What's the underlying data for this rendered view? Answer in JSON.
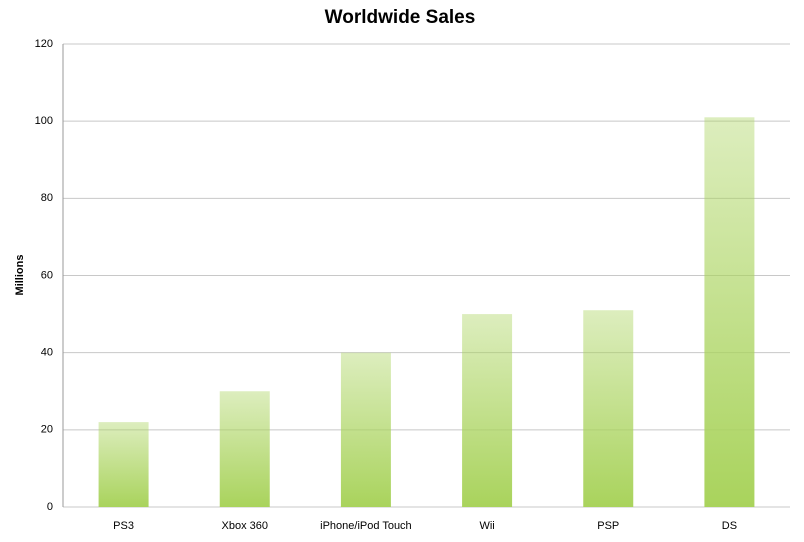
{
  "chart_data": {
    "type": "bar",
    "title": "Worldwide Sales",
    "y_label": "Millions",
    "categories": [
      "PS3",
      "Xbox 360",
      "iPhone/iPod Touch",
      "Wii",
      "PSP",
      "DS"
    ],
    "values": [
      22,
      30,
      40,
      50,
      51,
      101
    ],
    "color": "#a9d35c",
    "ylim": [
      0,
      120
    ],
    "yticks": [
      0,
      20,
      40,
      60,
      80,
      100,
      120
    ],
    "grid": true
  }
}
